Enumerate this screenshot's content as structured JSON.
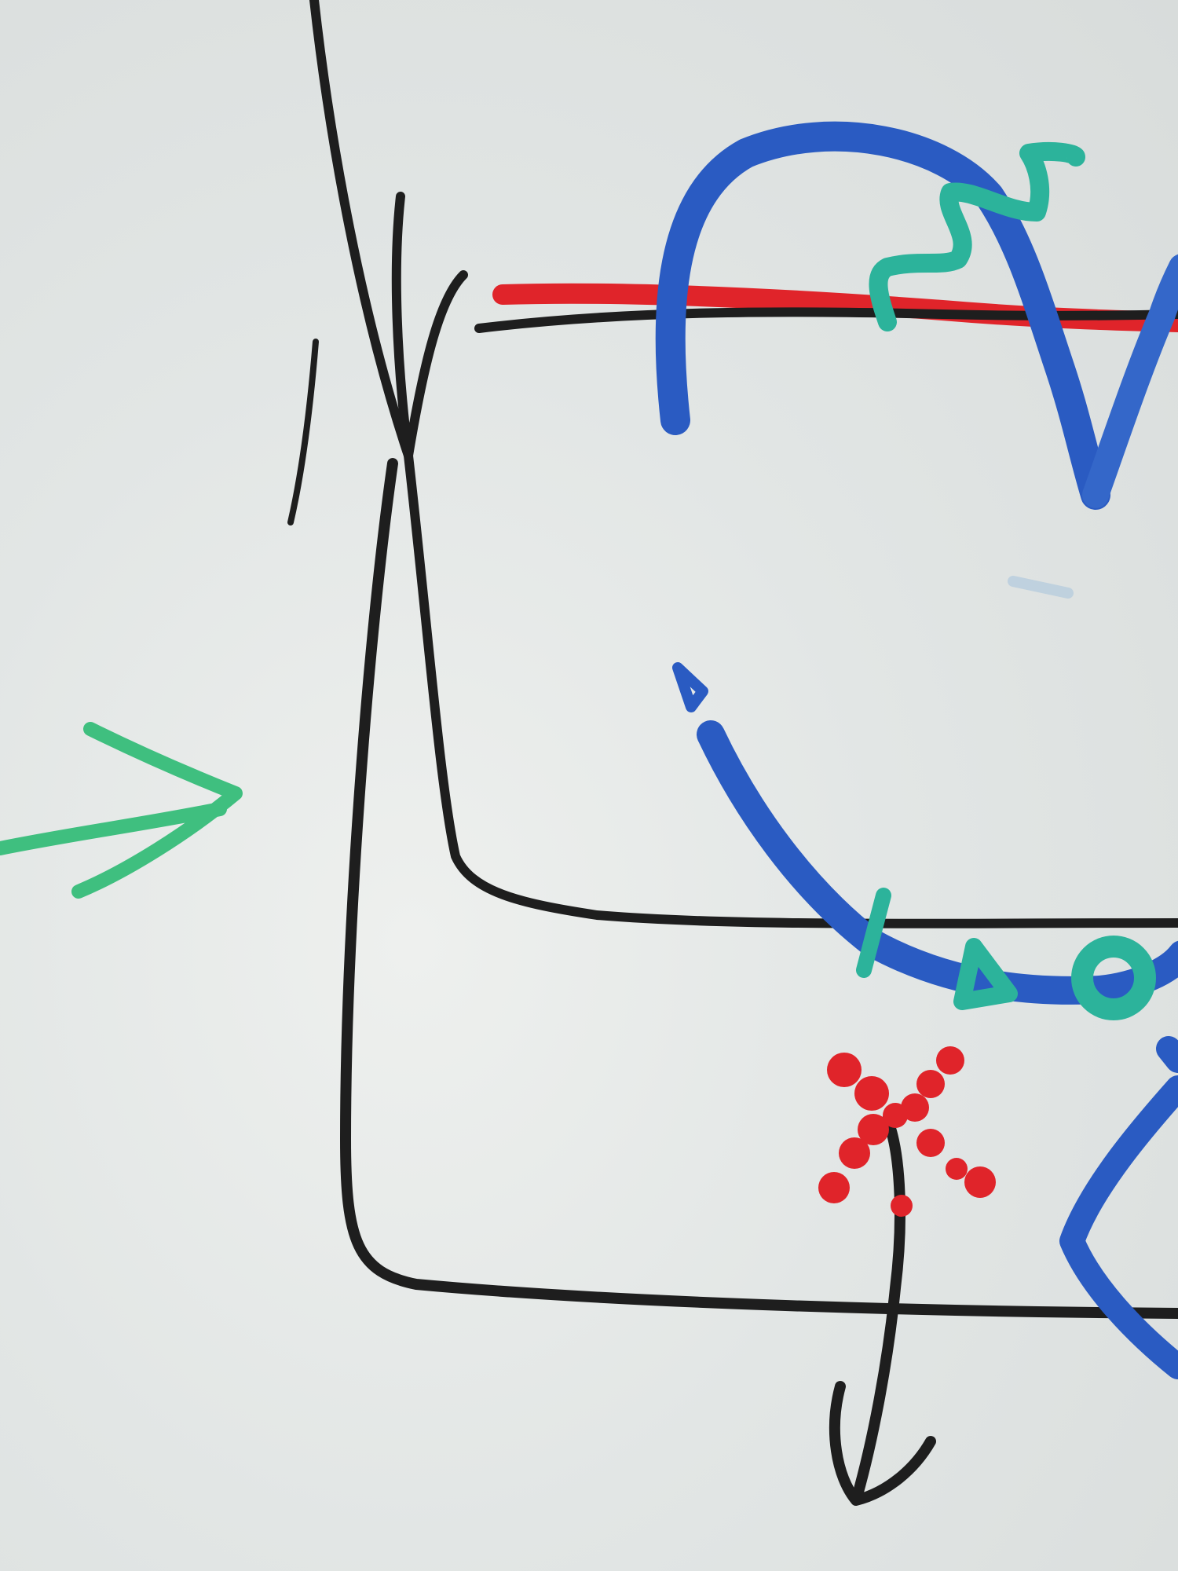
{
  "scene": {
    "subject": "whiteboard-marker-drawing"
  },
  "colors": {
    "board": "#e3e6e5",
    "black_marker": "#1e1e1e",
    "blue_marker": "#2a5bc2",
    "teal_marker": "#2cb39b",
    "green_marker": "#3fbf7f",
    "red_marker": "#e0242a"
  },
  "strokes": [
    {
      "name": "black-rectangle",
      "color": "black_marker"
    },
    {
      "name": "black-tall-line",
      "color": "black_marker"
    },
    {
      "name": "black-cross-line",
      "color": "black_marker"
    },
    {
      "name": "black-short-dash",
      "color": "black_marker"
    },
    {
      "name": "black-arrow-down",
      "color": "black_marker"
    },
    {
      "name": "red-horizontal-line",
      "color": "red_marker"
    },
    {
      "name": "black-horizontal-line",
      "color": "black_marker"
    },
    {
      "name": "blue-arc-top",
      "color": "blue_marker"
    },
    {
      "name": "blue-v-shape",
      "color": "blue_marker"
    },
    {
      "name": "blue-curve-middle",
      "color": "blue_marker"
    },
    {
      "name": "blue-chevron-bottom-right",
      "color": "blue_marker"
    },
    {
      "name": "teal-zigzag",
      "color": "teal_marker"
    },
    {
      "name": "teal-dash",
      "color": "teal_marker"
    },
    {
      "name": "teal-triangle",
      "color": "teal_marker"
    },
    {
      "name": "teal-circle",
      "color": "teal_marker"
    },
    {
      "name": "green-arrow",
      "color": "green_marker"
    },
    {
      "name": "red-dotted-x",
      "color": "red_marker"
    }
  ]
}
